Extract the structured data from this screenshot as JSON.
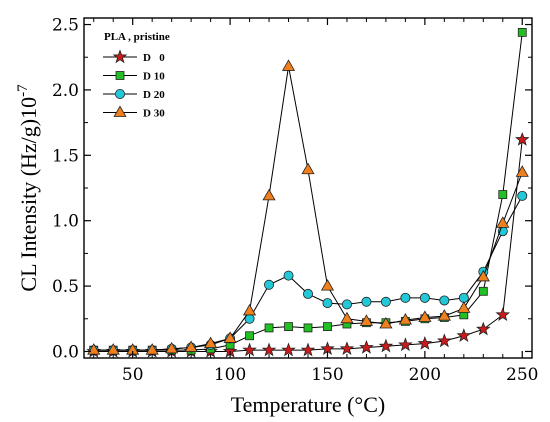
{
  "chart_data": {
    "type": "line",
    "title": "",
    "xlabel": "Temperature (°C)",
    "ylabel": "CL Intensity (Hz/g)10",
    "ylabel_exponent": "-7",
    "xlim": [
      25,
      255
    ],
    "ylim": [
      -0.05,
      2.55
    ],
    "xticks": [
      50,
      100,
      150,
      200,
      250
    ],
    "xtick_labels": [
      "50",
      "100",
      "150",
      "200",
      "250"
    ],
    "yticks": [
      0.0,
      0.5,
      1.0,
      1.5,
      2.0,
      2.5
    ],
    "ytick_labels": [
      "0.0",
      "0.5",
      "1.0",
      "1.5",
      "2.0",
      "2.5"
    ],
    "grid": false,
    "legend_title": "PLA , pristine",
    "legend_position": "top-left",
    "series": [
      {
        "name": "D   0",
        "marker": "star",
        "color": "#cc1a1a",
        "x": [
          30,
          40,
          50,
          60,
          70,
          80,
          90,
          100,
          110,
          120,
          130,
          140,
          150,
          160,
          170,
          180,
          190,
          200,
          210,
          220,
          230,
          240,
          250
        ],
        "y": [
          0.0,
          0.0,
          0.0,
          0.0,
          0.0,
          0.0,
          0.0,
          0.0,
          0.01,
          0.01,
          0.01,
          0.01,
          0.02,
          0.02,
          0.03,
          0.04,
          0.05,
          0.06,
          0.08,
          0.12,
          0.17,
          0.28,
          1.62
        ]
      },
      {
        "name": "D 10",
        "marker": "square",
        "color": "#22c022",
        "x": [
          30,
          40,
          50,
          60,
          70,
          80,
          90,
          100,
          110,
          120,
          130,
          140,
          150,
          160,
          170,
          180,
          190,
          200,
          210,
          220,
          230,
          240,
          250
        ],
        "y": [
          0.01,
          0.01,
          0.01,
          0.01,
          0.01,
          0.01,
          0.02,
          0.05,
          0.12,
          0.18,
          0.19,
          0.18,
          0.19,
          0.21,
          0.22,
          0.22,
          0.23,
          0.25,
          0.26,
          0.28,
          0.46,
          1.2,
          2.44
        ]
      },
      {
        "name": "D 20",
        "marker": "circle",
        "color": "#22c8d8",
        "x": [
          30,
          40,
          50,
          60,
          70,
          80,
          90,
          100,
          110,
          120,
          130,
          140,
          150,
          160,
          170,
          180,
          190,
          200,
          210,
          220,
          230,
          240,
          250
        ],
        "y": [
          0.01,
          0.01,
          0.01,
          0.01,
          0.02,
          0.03,
          0.05,
          0.1,
          0.25,
          0.51,
          0.58,
          0.44,
          0.37,
          0.36,
          0.38,
          0.38,
          0.41,
          0.41,
          0.39,
          0.41,
          0.61,
          0.92,
          1.19
        ]
      },
      {
        "name": "D 30",
        "marker": "triangle",
        "color": "#f07f1e",
        "x": [
          30,
          40,
          50,
          60,
          70,
          80,
          90,
          100,
          110,
          120,
          130,
          140,
          150,
          160,
          170,
          180,
          190,
          200,
          210,
          220,
          230,
          240,
          250
        ],
        "y": [
          0.01,
          0.01,
          0.01,
          0.01,
          0.02,
          0.03,
          0.06,
          0.1,
          0.31,
          1.19,
          2.18,
          1.39,
          0.5,
          0.25,
          0.23,
          0.21,
          0.24,
          0.26,
          0.27,
          0.33,
          0.57,
          0.98,
          1.37
        ]
      }
    ]
  }
}
